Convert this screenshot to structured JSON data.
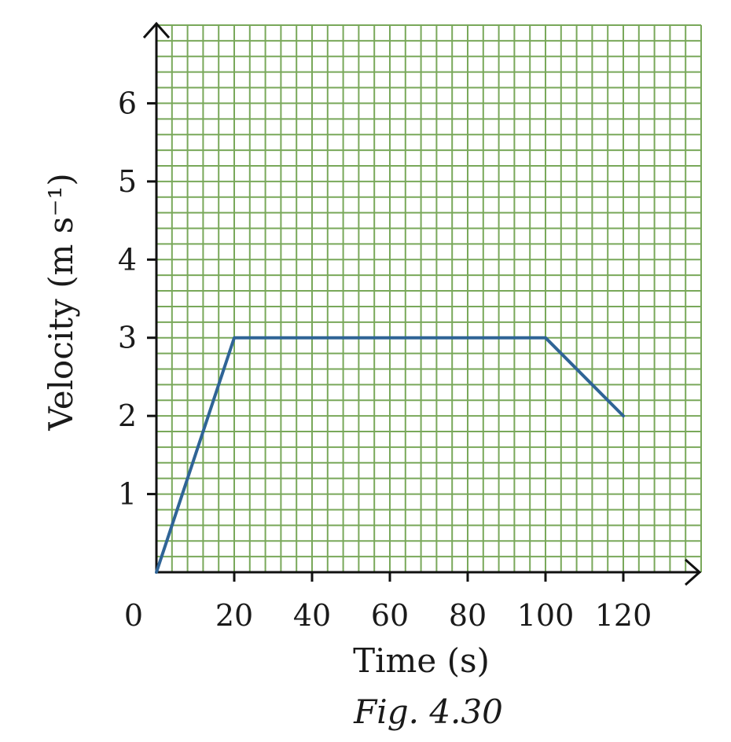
{
  "chart_data": {
    "type": "line",
    "title": "",
    "caption": "Fig. 4.30",
    "xlabel": "Time (s)",
    "ylabel": "Velocity (m s⁻¹)",
    "xlim": [
      0,
      140
    ],
    "ylim": [
      0,
      7
    ],
    "xticks": [
      0,
      20,
      40,
      60,
      80,
      100,
      120
    ],
    "xtick_labels": [
      "0",
      "20",
      "40",
      "60",
      "80",
      "100",
      "120"
    ],
    "yticks": [
      1,
      2,
      3,
      4,
      5,
      6
    ],
    "ytick_labels": [
      "1",
      "2",
      "3",
      "4",
      "5",
      "6"
    ],
    "grid": true,
    "grid_minor_step": 4,
    "grid_major_step": 20,
    "colors": {
      "grid": "#79a85a",
      "series": "#2f6496",
      "axis": "#111111"
    },
    "series": [
      {
        "name": "",
        "x": [
          0,
          20,
          100,
          120
        ],
        "y": [
          0,
          3,
          3,
          2
        ]
      }
    ]
  }
}
